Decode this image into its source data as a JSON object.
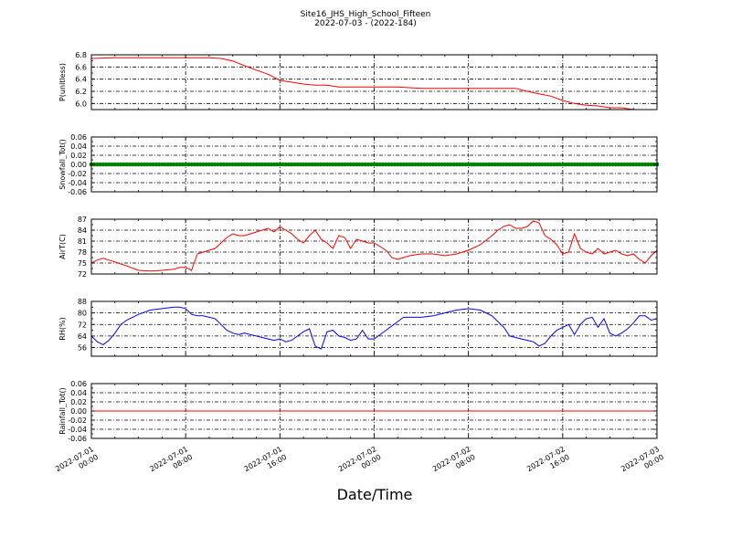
{
  "title": {
    "line1": "Site16_JHS_High_School_Fifteen",
    "line2": "2022-07-03 - (2022-184)"
  },
  "xlabel": "Date/Time",
  "xticks": [
    {
      "l1": "2022-07-01",
      "l2": "00:00"
    },
    {
      "l1": "2022-07-01",
      "l2": "08:00"
    },
    {
      "l1": "2022-07-01",
      "l2": "16:00"
    },
    {
      "l1": "2022-07-02",
      "l2": "00:00"
    },
    {
      "l1": "2022-07-02",
      "l2": "08:00"
    },
    {
      "l1": "2022-07-02",
      "l2": "16:00"
    },
    {
      "l1": "2022-07-03",
      "l2": "00:00"
    }
  ],
  "chart_data": [
    {
      "type": "line",
      "ylabel": "P(unitless)",
      "ylim": [
        5.9,
        6.8
      ],
      "yticks": [
        "6.8",
        "6.6",
        "6.4",
        "6.2",
        "6.0"
      ],
      "ytick_values": [
        6.8,
        6.6,
        6.4,
        6.2,
        6.0
      ],
      "grid": true,
      "color": "#ff0000",
      "x_range_hours": [
        0,
        48
      ],
      "x_hours": [
        0,
        2,
        4,
        6,
        8,
        10,
        11,
        12,
        13,
        14,
        15,
        16,
        17,
        18,
        19,
        20,
        21,
        22,
        24,
        26,
        28,
        30,
        32,
        34,
        35,
        36,
        37,
        38,
        39,
        40,
        41,
        42,
        43,
        44,
        45,
        46,
        47,
        48
      ],
      "y": [
        6.74,
        6.75,
        6.75,
        6.75,
        6.75,
        6.75,
        6.74,
        6.7,
        6.62,
        6.55,
        6.48,
        6.38,
        6.35,
        6.32,
        6.3,
        6.3,
        6.27,
        6.27,
        6.27,
        6.27,
        6.25,
        6.25,
        6.25,
        6.25,
        6.25,
        6.25,
        6.2,
        6.16,
        6.12,
        6.05,
        6.0,
        5.97,
        5.96,
        5.93,
        5.93,
        5.9,
        5.9,
        5.9
      ]
    },
    {
      "type": "scatter",
      "ylabel": "Snowfall_Tot()",
      "ylim": [
        -0.06,
        0.06
      ],
      "yticks": [
        "0.06",
        "0.04",
        "0.02",
        "0.00",
        "-0.02",
        "-0.04",
        "-0.06"
      ],
      "ytick_values": [
        0.06,
        0.04,
        0.02,
        0.0,
        -0.02,
        -0.04,
        -0.06
      ],
      "grid": true,
      "color": "#008000",
      "x_range_hours": [
        0,
        48
      ],
      "constant_value": 0.0
    },
    {
      "type": "line",
      "ylabel": "AirT(C)",
      "ylim": [
        72,
        87
      ],
      "yticks": [
        "87",
        "84",
        "81",
        "78",
        "75",
        "72"
      ],
      "ytick_values": [
        87,
        84,
        81,
        78,
        75,
        72
      ],
      "grid": true,
      "color": "#ff0000",
      "x_range_hours": [
        0,
        48
      ],
      "x_hours": [
        0,
        0.5,
        1,
        2,
        3,
        4,
        5,
        6,
        7,
        7.5,
        8,
        8.5,
        9,
        9.5,
        10,
        10.5,
        11,
        11.5,
        12,
        12.5,
        13,
        13.5,
        14,
        14.5,
        15,
        15.5,
        16,
        16.5,
        17,
        17.5,
        18,
        18.5,
        19,
        19.5,
        20,
        20.5,
        21,
        21.5,
        22,
        22.5,
        23,
        23.5,
        24,
        25,
        25.5,
        26,
        26.5,
        27,
        28,
        29,
        30,
        31,
        32,
        33,
        34,
        34.5,
        35,
        35.5,
        36,
        36.5,
        37,
        37.5,
        38,
        38.5,
        39,
        39.5,
        40,
        40.5,
        41,
        41.5,
        42,
        42.5,
        43,
        43.5,
        44,
        44.5,
        45,
        45.5,
        46,
        46.5,
        47,
        47.5,
        48
      ],
      "y": [
        75,
        75.8,
        76.3,
        75.3,
        74.2,
        73.0,
        72.8,
        73.0,
        73.3,
        73.8,
        73.8,
        73.0,
        77.5,
        78.0,
        78.5,
        79.0,
        80.5,
        82.0,
        83.0,
        82.5,
        82.5,
        83.0,
        83.5,
        84.0,
        84.5,
        83.5,
        85.0,
        84.0,
        83.0,
        81.5,
        80.5,
        82.5,
        84.0,
        81.5,
        80.5,
        79.0,
        82.5,
        82.0,
        79.0,
        81.5,
        81.0,
        80.5,
        80.5,
        78.5,
        76.5,
        76.0,
        76.5,
        77.0,
        77.5,
        77.5,
        77.0,
        77.5,
        78.5,
        80.0,
        82.5,
        84.0,
        85.0,
        85.5,
        84.5,
        84.5,
        85.0,
        86.5,
        86.0,
        82.5,
        81.5,
        80.0,
        77.5,
        78.0,
        83.0,
        79.0,
        78.0,
        77.5,
        79.0,
        77.5,
        78.0,
        78.5,
        77.5,
        77.0,
        77.5,
        76.0,
        75.0,
        77.0,
        78.5
      ]
    },
    {
      "type": "line",
      "ylabel": "RH(%)",
      "ylim": [
        50,
        88
      ],
      "yticks": [
        "88",
        "80",
        "72",
        "64",
        "56"
      ],
      "ytick_values": [
        88,
        80,
        72,
        64,
        56
      ],
      "grid": true,
      "color": "#0000ff",
      "x_range_hours": [
        0,
        48
      ],
      "x_hours": [
        0,
        0.5,
        1,
        1.5,
        2,
        2.5,
        3,
        4,
        5,
        6,
        7,
        7.5,
        8,
        8.5,
        9,
        9.5,
        10,
        10.5,
        11,
        11.5,
        12,
        12.5,
        13,
        13.5,
        14,
        14.5,
        15,
        15.5,
        16,
        16.5,
        17,
        17.5,
        18,
        18.5,
        19,
        19.5,
        20,
        20.5,
        21,
        21.5,
        22,
        22.5,
        23,
        23.5,
        24,
        25,
        26,
        26.5,
        27,
        28,
        29,
        30,
        31,
        32,
        33,
        34,
        34.5,
        35,
        35.5,
        36,
        36.5,
        37,
        37.5,
        38,
        38.5,
        39,
        39.5,
        40,
        40.5,
        41,
        41.5,
        42,
        42.5,
        43,
        43.5,
        44,
        44.5,
        45,
        45.5,
        46,
        46.5,
        47,
        47.5,
        48
      ],
      "y": [
        64,
        60,
        58,
        61,
        66,
        72,
        75,
        79,
        82,
        83,
        84,
        84,
        83,
        79,
        78,
        78,
        77,
        76,
        72,
        68,
        66,
        65,
        66,
        65,
        64,
        63,
        62,
        61,
        62,
        60,
        61,
        64,
        67,
        69,
        57,
        55,
        67,
        68,
        64,
        63,
        61,
        62,
        68,
        62,
        62,
        68,
        74,
        77,
        77,
        77,
        78,
        80,
        82,
        83,
        82,
        78,
        74,
        70,
        64,
        63,
        62,
        61,
        60,
        57,
        59,
        64,
        68,
        70,
        72,
        65,
        72,
        76,
        77,
        70,
        76,
        66,
        64,
        66,
        69,
        73,
        78,
        78,
        75,
        76
      ]
    },
    {
      "type": "line",
      "ylabel": "Rainfall_Tot()",
      "ylim": [
        -0.06,
        0.06
      ],
      "yticks": [
        "0.06",
        "0.04",
        "0.02",
        "0.00",
        "-0.02",
        "-0.04",
        "-0.06"
      ],
      "ytick_values": [
        0.06,
        0.04,
        0.02,
        0.0,
        -0.02,
        -0.04,
        -0.06
      ],
      "grid": true,
      "color": "#ff0000",
      "x_range_hours": [
        0,
        48
      ],
      "constant_value": 0.0
    }
  ]
}
